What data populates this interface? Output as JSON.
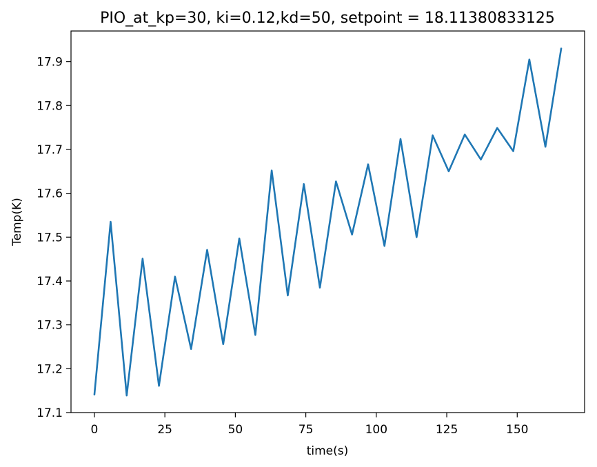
{
  "chart_data": {
    "type": "line",
    "title": "PIO_at_kp=30, ki=0.12,kd=50, setpoint = 18.11380833125",
    "xlabel": "time(s)",
    "ylabel": "Temp(K)",
    "xlim": [
      -8.3,
      173.9
    ],
    "ylim": [
      17.1,
      17.97
    ],
    "xticks": [
      0,
      25,
      50,
      75,
      100,
      125,
      150
    ],
    "xtick_labels": [
      "0",
      "25",
      "50",
      "75",
      "100",
      "125",
      "150"
    ],
    "yticks": [
      17.1,
      17.2,
      17.3,
      17.4,
      17.5,
      17.6,
      17.7,
      17.8,
      17.9
    ],
    "ytick_labels": [
      "17.1",
      "17.2",
      "17.3",
      "17.4",
      "17.5",
      "17.6",
      "17.7",
      "17.8",
      "17.9"
    ],
    "grid": false,
    "series": [
      {
        "color": "#1f77b4",
        "x": [
          0,
          5.75,
          11.45,
          17.1,
          22.9,
          28.6,
          34.3,
          40.0,
          45.7,
          51.4,
          57.1,
          62.9,
          68.6,
          74.3,
          80.0,
          85.7,
          91.4,
          97.1,
          102.9,
          108.6,
          114.3,
          120.0,
          125.7,
          131.4,
          137.1,
          142.9,
          148.6,
          154.3,
          160.0,
          165.6
        ],
        "y": [
          17.141,
          17.535,
          17.139,
          17.451,
          17.161,
          17.41,
          17.245,
          17.471,
          17.256,
          17.497,
          17.277,
          17.652,
          17.367,
          17.621,
          17.385,
          17.627,
          17.506,
          17.666,
          17.48,
          17.724,
          17.5,
          17.732,
          17.65,
          17.734,
          17.677,
          17.749,
          17.696,
          17.905,
          17.706,
          17.93
        ]
      }
    ]
  }
}
